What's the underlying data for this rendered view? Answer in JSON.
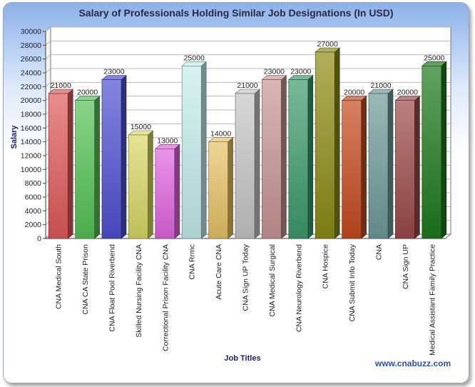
{
  "chart_data": {
    "type": "bar",
    "title": "Salary of Professionals Holding Similar Job Designations (In USD)",
    "xlabel": "Job Titles",
    "ylabel": "Salary",
    "ylim": [
      0,
      30000
    ],
    "ytick_step": 2000,
    "grid": true,
    "legend": "none",
    "categories": [
      "CNA Medical South",
      "CNA CA State Prison",
      "CNA Float Pool Riverbend",
      "Skilled Nursing Facility CNA",
      "Correctional Prison Facility CNA",
      "CNA Rrmc",
      "Acute Care CNA",
      "CNA Sign UP Today",
      "CNA Medical Surgical",
      "CNA Neurology Riverbend",
      "CNA Hospice",
      "CNA Submit Info Today",
      "CNA",
      "CNA Sign UP",
      "Medical Assistant Family Practice"
    ],
    "values": [
      21000,
      20000,
      23000,
      15000,
      13000,
      25000,
      14000,
      21000,
      23000,
      23000,
      27000,
      20000,
      21000,
      20000,
      25000
    ],
    "colors": [
      "#e05a5a",
      "#55c255",
      "#4f4fd2",
      "#d8d866",
      "#e065e0",
      "#c5eeee",
      "#e8c266",
      "#c6c6c6",
      "#c99595",
      "#3d9a6e",
      "#8c8c16",
      "#c64a1e",
      "#6e9a9a",
      "#9c4a4a",
      "#1d7a1d"
    ],
    "watermark": "www.cnabuzz.com"
  }
}
